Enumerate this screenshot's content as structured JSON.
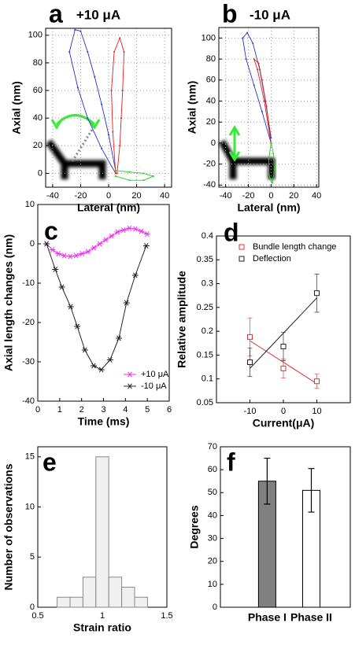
{
  "chart_data": [
    {
      "type": "line",
      "label": "a",
      "title": "+10 μA",
      "x_label": "Lateral (nm)",
      "y_label": "Axial (nm)",
      "xlim": [
        -45,
        45
      ],
      "ylim": [
        -10,
        105
      ],
      "xticks": [
        -40,
        -20,
        0,
        20,
        40
      ],
      "yticks": [
        0,
        20,
        40,
        60,
        80,
        100
      ],
      "grid": true,
      "series": [
        {
          "color": "#2233cc",
          "x": [
            5,
            -5,
            -15,
            -22,
            -28,
            -24,
            -20,
            -15,
            -10,
            -5,
            0,
            5
          ],
          "values": [
            0,
            18,
            40,
            62,
            88,
            104,
            103,
            88,
            70,
            50,
            28,
            2
          ]
        },
        {
          "color": "#dd2222",
          "x": [
            5,
            3,
            2,
            4,
            8,
            11,
            10,
            9,
            8,
            6
          ],
          "values": [
            0,
            30,
            60,
            88,
            98,
            88,
            60,
            40,
            20,
            0
          ]
        },
        {
          "color": "#22cc22",
          "x": [
            5,
            15,
            25,
            32,
            25,
            15,
            5
          ],
          "values": [
            2,
            1,
            0,
            -2,
            -5,
            -5,
            -2
          ]
        }
      ]
    },
    {
      "type": "line",
      "label": "b",
      "title": "-10 μA",
      "x_label": "Lateral (nm)",
      "y_label": "Axial (nm)",
      "xlim": [
        -46,
        42
      ],
      "ylim": [
        -42,
        110
      ],
      "xticks": [
        -40,
        -20,
        0,
        20,
        40
      ],
      "yticks": [
        -40,
        -20,
        0,
        20,
        40,
        60,
        80,
        100
      ],
      "grid": true,
      "series": [
        {
          "color": "#2233cc",
          "x": [
            0,
            -8,
            -15,
            -22,
            -25,
            -21,
            -16,
            -10,
            -5,
            0
          ],
          "values": [
            0,
            30,
            55,
            80,
            100,
            105,
            95,
            70,
            40,
            5
          ]
        },
        {
          "color": "#dd2222",
          "x": [
            0,
            -6,
            -12,
            -15,
            -11,
            -8,
            -4,
            0
          ],
          "values": [
            0,
            40,
            70,
            80,
            76,
            60,
            35,
            0
          ]
        },
        {
          "color": "#22cc22",
          "x": [
            0,
            2,
            3,
            1,
            -2,
            -2,
            0
          ],
          "values": [
            0,
            -10,
            -25,
            -38,
            -30,
            -15,
            0
          ]
        }
      ]
    },
    {
      "type": "line",
      "label": "c",
      "x_label": "Time (ms)",
      "y_label": "Axial length changes (nm)",
      "xlim": [
        0,
        6
      ],
      "ylim": [
        -40,
        10
      ],
      "xticks": [
        0,
        1,
        2,
        3,
        4,
        5,
        6
      ],
      "yticks": [
        -40,
        -30,
        -20,
        -10,
        0,
        10
      ],
      "grid": false,
      "series": [
        {
          "name": "+10 μA",
          "color": "#ee33ee",
          "marker": "*",
          "x": [
            0.4,
            0.67,
            0.94,
            1.21,
            1.48,
            1.75,
            2.02,
            2.29,
            2.56,
            2.83,
            3.1,
            3.37,
            3.64,
            3.91,
            4.18,
            4.45,
            4.72,
            4.99
          ],
          "values": [
            0,
            -1.5,
            -2.5,
            -3,
            -3.2,
            -3,
            -2.5,
            -2,
            -1,
            0,
            1,
            2,
            3,
            3.5,
            4,
            3.8,
            3.2,
            2.5
          ]
        },
        {
          "name": "-10 μA",
          "color": "#222222",
          "marker": "*",
          "x": [
            0.4,
            0.8,
            1.1,
            1.5,
            1.8,
            2.15,
            2.55,
            2.9,
            3.3,
            3.7,
            4.05,
            4.45,
            4.95
          ],
          "values": [
            0,
            -6.5,
            -11,
            -16,
            -21,
            -27,
            -31,
            -32,
            -29.5,
            -24,
            -15,
            -8,
            -0.5
          ]
        }
      ]
    },
    {
      "type": "scatter",
      "label": "d",
      "x_label": "Current(μA)",
      "y_label": "Relative amplitude",
      "xlim": [
        -20,
        20
      ],
      "ylim": [
        0.05,
        0.4
      ],
      "xticks": [
        -10,
        0,
        10
      ],
      "yticks": [
        0.05,
        0.1,
        0.15,
        0.2,
        0.25,
        0.3,
        0.35,
        0.4
      ],
      "legend": "upper right",
      "series": [
        {
          "name": "Bundle length change",
          "color": "#dd3333",
          "x": [
            -10,
            0,
            10
          ],
          "values": [
            0.188,
            0.122,
            0.095
          ],
          "errors": [
            0.04,
            0.02,
            0.015
          ],
          "fit": {
            "x": [
              -10,
              10
            ],
            "y": [
              0.18,
              0.09
            ]
          }
        },
        {
          "name": "Deflection",
          "color": "#222222",
          "x": [
            -10,
            0,
            10
          ],
          "values": [
            0.135,
            0.168,
            0.28
          ],
          "errors": [
            0.03,
            0.03,
            0.04
          ],
          "fit": {
            "x": [
              -10,
              10
            ],
            "y": [
              0.122,
              0.27
            ]
          }
        }
      ]
    },
    {
      "type": "histogram",
      "label": "e",
      "x_label": "Strain ratio",
      "y_label": "Number of observations",
      "xlim": [
        0.5,
        1.5
      ],
      "ylim": [
        0,
        16
      ],
      "xticks": [
        0.5,
        1,
        1.5
      ],
      "yticks": [
        0,
        5,
        10,
        15
      ],
      "color": "#f0f0f0",
      "bins": [
        0.65,
        0.75,
        0.85,
        0.95,
        1.05,
        1.15,
        1.25,
        1.35
      ],
      "values": [
        1,
        1,
        3,
        15,
        3,
        2,
        1
      ]
    },
    {
      "type": "bar",
      "label": "f",
      "y_label": "Degrees",
      "ylim": [
        0,
        70
      ],
      "yticks": [
        0,
        10,
        20,
        30,
        40,
        50,
        60,
        70
      ],
      "categories": [
        "Phase I",
        "Phase II"
      ],
      "values": [
        55,
        51
      ],
      "errors": [
        10,
        9.5
      ],
      "colors": [
        "#808080",
        "#ffffff"
      ]
    }
  ]
}
